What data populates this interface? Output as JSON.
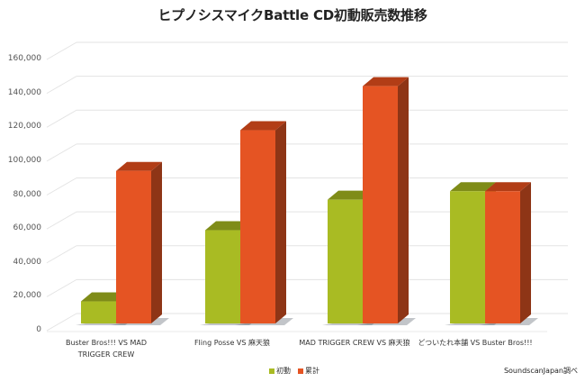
{
  "chart_data": {
    "type": "bar",
    "title": "ヒプノシスマイクBattle CD初動販売数推移",
    "xlabel": "",
    "ylabel": "",
    "ylim": [
      0,
      160000
    ],
    "yticks": [
      "0",
      "20,000",
      "40,000",
      "60,000",
      "80,000",
      "100,000",
      "120,000",
      "140,000",
      "160,000"
    ],
    "grid": true,
    "style": "3d-clustered",
    "legend_position": "bottom",
    "categories": [
      "Buster Bros!!! VS MAD TRIGGER CREW",
      "Fling Posse VS 麻天狼",
      "MAD TRIGGER CREW VS 麻天狼",
      "どついたれ本舗 VS Buster Bros!!!"
    ],
    "category_lines": [
      [
        "Buster Bros!!! VS MAD",
        "TRIGGER CREW"
      ],
      [
        "Fling Posse VS 麻天狼"
      ],
      [
        "MAD TRIGGER CREW VS 麻天狼"
      ],
      [
        "どついたれ本舗 VS Buster Bros!!!"
      ]
    ],
    "series": [
      {
        "name": "初動",
        "color": "#a9bb23",
        "top_color": "#7f8c18",
        "values": [
          13000,
          55000,
          73000,
          78000
        ]
      },
      {
        "name": "累計",
        "color": "#e55423",
        "top_color": "#b23d16",
        "values": [
          90000,
          114000,
          140000,
          78000
        ]
      }
    ],
    "annotations": [
      "SoundscanJapan調べ"
    ]
  },
  "source_note": "SoundscanJapan調べ"
}
